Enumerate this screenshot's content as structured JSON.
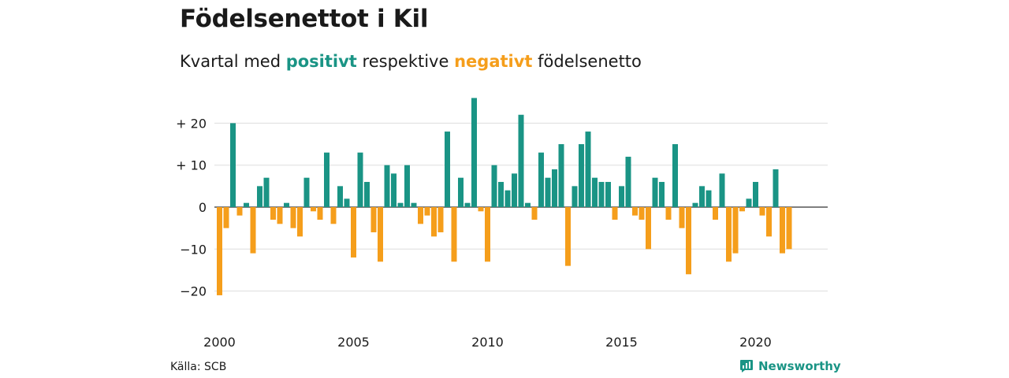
{
  "header": {
    "title": "Födelsenettot i Kil",
    "subtitle_prefix": "Kvartal med",
    "subtitle_positive": "positivt",
    "subtitle_middle": "respektive",
    "subtitle_negative": "negativt",
    "subtitle_suffix": "födelsenetto"
  },
  "footer": {
    "source": "Källa: SCB",
    "brand": "Newsworthy",
    "brand_icon": "bar-chart-icon"
  },
  "colors": {
    "positive": "#1a9485",
    "negative": "#f59e1b",
    "grid": "#dddddd",
    "zero_line": "#333333",
    "text": "#1a1a1a"
  },
  "chart_data": {
    "type": "bar",
    "x_start": "2000",
    "x_end": "2022",
    "y_ticks": [
      20,
      10,
      0,
      -10,
      -20
    ],
    "y_tick_labels": [
      "+ 20",
      "+ 10",
      "0",
      "−10",
      "−20"
    ],
    "x_tick_labels": [
      "2000",
      "2005",
      "2010",
      "2015",
      "2020"
    ],
    "ylim": [
      -24,
      27
    ],
    "grid": true,
    "values": [
      -21,
      -5,
      20,
      -2,
      1,
      -11,
      5,
      7,
      -3,
      -4,
      1,
      -5,
      -7,
      7,
      -1,
      -3,
      13,
      -4,
      5,
      2,
      -12,
      13,
      6,
      -6,
      -13,
      10,
      8,
      1,
      10,
      1,
      -4,
      -2,
      -7,
      -6,
      18,
      -13,
      7,
      1,
      26,
      -1,
      -13,
      10,
      6,
      4,
      8,
      22,
      1,
      -3,
      13,
      7,
      9,
      15,
      -14,
      5,
      15,
      18,
      7,
      6,
      6,
      -3,
      5,
      12,
      -2,
      -3,
      -10,
      7,
      6,
      -3,
      15,
      -5,
      -16,
      1,
      5,
      4,
      -3,
      8,
      -13,
      -11,
      -1,
      2,
      6,
      -2,
      -7,
      9,
      -11,
      -10
    ]
  }
}
